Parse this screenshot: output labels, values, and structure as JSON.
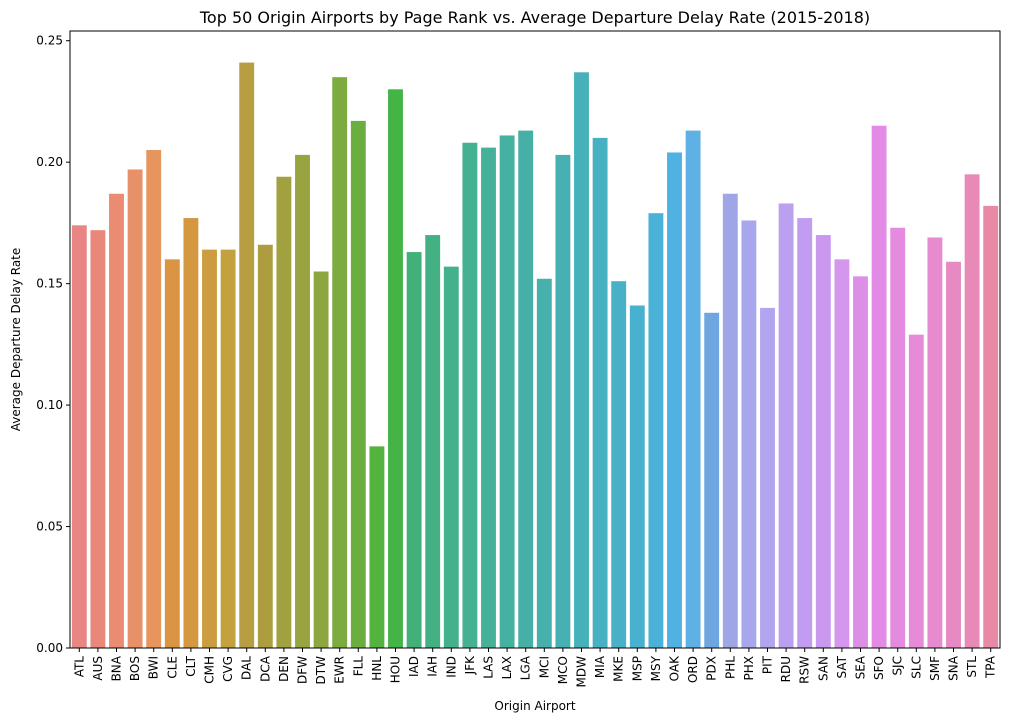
{
  "chart_data": {
    "type": "bar",
    "title": "Top 50 Origin Airports by Page Rank vs. Average Departure Delay Rate (2015-2018)",
    "xlabel": "Origin Airport",
    "ylabel": "Average Departure Delay Rate",
    "ylim": [
      0,
      0.254
    ],
    "yticks": [
      0.0,
      0.05,
      0.1,
      0.15,
      0.2,
      0.25
    ],
    "ytick_labels": [
      "0.00",
      "0.05",
      "0.10",
      "0.15",
      "0.20",
      "0.25"
    ],
    "grid": false,
    "legend": "none",
    "categories": [
      "ATL",
      "AUS",
      "BNA",
      "BOS",
      "BWI",
      "CLE",
      "CLT",
      "CMH",
      "CVG",
      "DAL",
      "DCA",
      "DEN",
      "DFW",
      "DTW",
      "EWR",
      "FLL",
      "HNL",
      "HOU",
      "IAD",
      "IAH",
      "IND",
      "JFK",
      "LAS",
      "LAX",
      "LGA",
      "MCI",
      "MCO",
      "MDW",
      "MIA",
      "MKE",
      "MSP",
      "MSY",
      "OAK",
      "ORD",
      "PDX",
      "PHL",
      "PHX",
      "PIT",
      "RDU",
      "RSW",
      "SAN",
      "SAT",
      "SEA",
      "SFO",
      "SJC",
      "SLC",
      "SMF",
      "SNA",
      "STL",
      "TPA"
    ],
    "values": [
      0.174,
      0.172,
      0.187,
      0.197,
      0.205,
      0.16,
      0.177,
      0.164,
      0.164,
      0.241,
      0.166,
      0.194,
      0.203,
      0.155,
      0.235,
      0.217,
      0.083,
      0.23,
      0.163,
      0.17,
      0.157,
      0.208,
      0.206,
      0.211,
      0.213,
      0.152,
      0.203,
      0.237,
      0.21,
      0.151,
      0.141,
      0.179,
      0.204,
      0.213,
      0.138,
      0.187,
      0.176,
      0.14,
      0.183,
      0.177,
      0.17,
      0.16,
      0.153,
      0.215,
      0.173,
      0.129,
      0.169,
      0.159,
      0.195,
      0.182
    ],
    "colors": [
      "#e98583",
      "#e9887a",
      "#e98c71",
      "#e89067",
      "#e7945d",
      "#d99444",
      "#d49840",
      "#cc9d40",
      "#c3a13f",
      "#b89e43",
      "#ac9d3f",
      "#a2a13f",
      "#97a43f",
      "#8ca73f",
      "#7cab40",
      "#6aae3f",
      "#54b23f",
      "#44b447",
      "#43b07a",
      "#43b183",
      "#43b18b",
      "#44b192",
      "#45b199",
      "#45b1a0",
      "#46b0a6",
      "#46b0ad",
      "#46b0b3",
      "#47b1ba",
      "#48b1c1",
      "#48b1c8",
      "#49b1d0",
      "#4ab2d9",
      "#4fb2e3",
      "#5fb0e4",
      "#6ea7e0",
      "#9fa6e6",
      "#a8a6ec",
      "#b2a5ef",
      "#bb9ff0",
      "#c29cf0",
      "#c899ef",
      "#d596ee",
      "#dd8fe8",
      "#e28ae6",
      "#e48be0",
      "#e58bd8",
      "#e68bce",
      "#e78ac3",
      "#e88ab8",
      "#e88aa6"
    ]
  }
}
